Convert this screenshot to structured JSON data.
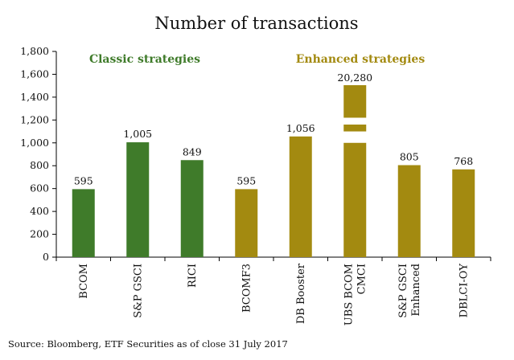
{
  "chart_data": {
    "type": "bar",
    "title": "Number of transactions",
    "categories": [
      "BCOM",
      "S&P GSCI",
      "RICI",
      "BCOMF3",
      "DB Booster",
      "UBS BCOM CMCI",
      "S&P GSCI Enhanced",
      "DBLCI-OY"
    ],
    "category_lines": [
      [
        "BCOM"
      ],
      [
        "S&P GSCI"
      ],
      [
        "RICI"
      ],
      [
        "BCOMF3"
      ],
      [
        "DB Booster"
      ],
      [
        "UBS BCOM",
        "CMCI"
      ],
      [
        "S&P GSCI",
        "Enhanced"
      ],
      [
        "DBLCI-OY"
      ]
    ],
    "values": [
      595,
      1005,
      849,
      595,
      1056,
      20280,
      805,
      768
    ],
    "value_labels": [
      "595",
      "1,005",
      "849",
      "595",
      "1,056",
      "20,280",
      "805",
      "768"
    ],
    "groups": [
      "classic",
      "classic",
      "classic",
      "enhanced",
      "enhanced",
      "enhanced",
      "enhanced",
      "enhanced"
    ],
    "broken_axis_category_index": 5,
    "ylim": [
      0,
      1800
    ],
    "yticks": [
      0,
      200,
      400,
      600,
      800,
      1000,
      1200,
      1400,
      1600,
      1800
    ],
    "ytick_labels": [
      "0",
      "200",
      "400",
      "600",
      "800",
      "1,000",
      "1,200",
      "1,400",
      "1,600",
      "1,800"
    ],
    "xlabel": "",
    "ylabel": "",
    "grid": false,
    "group_labels": {
      "classic": "Classic strategies",
      "enhanced": "Enhanced strategies"
    },
    "colors": {
      "classic": "#3f7b2a",
      "enhanced": "#a38a10"
    }
  },
  "source": "Source: Bloomberg, ETF Securities as of close 31 July 2017"
}
